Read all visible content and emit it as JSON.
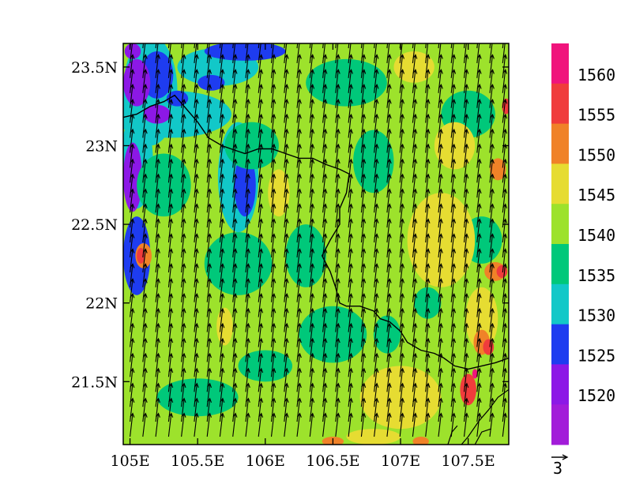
{
  "map": {
    "lon_range": [
      104.95,
      107.8
    ],
    "lat_range": [
      21.1,
      23.65
    ],
    "x_ticks": [
      {
        "value": 105.0,
        "label": "105E"
      },
      {
        "value": 105.5,
        "label": "105.5E"
      },
      {
        "value": 106.0,
        "label": "106E"
      },
      {
        "value": 106.5,
        "label": "106.5E"
      },
      {
        "value": 107.0,
        "label": "107E"
      },
      {
        "value": 107.5,
        "label": "107.5E"
      }
    ],
    "y_ticks": [
      {
        "value": 23.5,
        "label": "23.5N"
      },
      {
        "value": 23.0,
        "label": "23N"
      },
      {
        "value": 22.5,
        "label": "22.5N"
      },
      {
        "value": 22.0,
        "label": "22N"
      },
      {
        "value": 21.5,
        "label": "21.5N"
      }
    ],
    "background_color": "#9de22c",
    "patches": [
      {
        "lon": 105.15,
        "lat": 23.35,
        "rx": 0.2,
        "ry": 0.35,
        "color": "#12c8c8"
      },
      {
        "lon": 105.05,
        "lat": 22.9,
        "rx": 0.12,
        "ry": 0.3,
        "color": "#12c8c8"
      },
      {
        "lon": 105.3,
        "lat": 23.2,
        "rx": 0.45,
        "ry": 0.15,
        "color": "#12c8c8"
      },
      {
        "lon": 105.8,
        "lat": 22.8,
        "rx": 0.15,
        "ry": 0.35,
        "color": "#12c8c8"
      },
      {
        "lon": 105.65,
        "lat": 23.5,
        "rx": 0.3,
        "ry": 0.12,
        "color": "#12c8c8"
      },
      {
        "lon": 105.2,
        "lat": 23.45,
        "rx": 0.12,
        "ry": 0.15,
        "color": "#1e3cf0"
      },
      {
        "lon": 105.35,
        "lat": 23.3,
        "rx": 0.08,
        "ry": 0.05,
        "color": "#1e3cf0"
      },
      {
        "lon": 105.6,
        "lat": 23.4,
        "rx": 0.1,
        "ry": 0.05,
        "color": "#1e3cf0"
      },
      {
        "lon": 105.85,
        "lat": 22.75,
        "rx": 0.08,
        "ry": 0.2,
        "color": "#1e3cf0"
      },
      {
        "lon": 105.05,
        "lat": 22.3,
        "rx": 0.1,
        "ry": 0.25,
        "color": "#1e3cf0"
      },
      {
        "lon": 105.85,
        "lat": 23.6,
        "rx": 0.3,
        "ry": 0.06,
        "color": "#1e3cf0"
      },
      {
        "lon": 105.05,
        "lat": 23.4,
        "rx": 0.1,
        "ry": 0.15,
        "color": "#8c18e6"
      },
      {
        "lon": 105.2,
        "lat": 23.2,
        "rx": 0.1,
        "ry": 0.06,
        "color": "#8c18e6"
      },
      {
        "lon": 105.02,
        "lat": 22.8,
        "rx": 0.07,
        "ry": 0.22,
        "color": "#8c18e6"
      },
      {
        "lon": 105.02,
        "lat": 23.6,
        "rx": 0.06,
        "ry": 0.05,
        "color": "#8c18e6"
      },
      {
        "lon": 105.25,
        "lat": 22.75,
        "rx": 0.2,
        "ry": 0.2,
        "color": "#00c87a"
      },
      {
        "lon": 105.8,
        "lat": 22.25,
        "rx": 0.25,
        "ry": 0.2,
        "color": "#00c87a"
      },
      {
        "lon": 106.3,
        "lat": 22.3,
        "rx": 0.15,
        "ry": 0.2,
        "color": "#00c87a"
      },
      {
        "lon": 106.5,
        "lat": 21.8,
        "rx": 0.25,
        "ry": 0.18,
        "color": "#00c87a"
      },
      {
        "lon": 106.9,
        "lat": 21.8,
        "rx": 0.1,
        "ry": 0.12,
        "color": "#00c87a"
      },
      {
        "lon": 106.6,
        "lat": 23.4,
        "rx": 0.3,
        "ry": 0.15,
        "color": "#00c87a"
      },
      {
        "lon": 107.5,
        "lat": 23.2,
        "rx": 0.2,
        "ry": 0.15,
        "color": "#00c87a"
      },
      {
        "lon": 107.6,
        "lat": 22.4,
        "rx": 0.15,
        "ry": 0.15,
        "color": "#00c87a"
      },
      {
        "lon": 105.5,
        "lat": 21.4,
        "rx": 0.3,
        "ry": 0.12,
        "color": "#00c87a"
      },
      {
        "lon": 106.0,
        "lat": 21.6,
        "rx": 0.2,
        "ry": 0.1,
        "color": "#00c87a"
      },
      {
        "lon": 105.9,
        "lat": 23.0,
        "rx": 0.2,
        "ry": 0.15,
        "color": "#00c87a"
      },
      {
        "lon": 106.8,
        "lat": 22.9,
        "rx": 0.15,
        "ry": 0.2,
        "color": "#00c87a"
      },
      {
        "lon": 107.2,
        "lat": 22.0,
        "rx": 0.1,
        "ry": 0.1,
        "color": "#00c87a"
      },
      {
        "lon": 107.3,
        "lat": 22.4,
        "rx": 0.25,
        "ry": 0.3,
        "color": "#e6dc32"
      },
      {
        "lon": 107.0,
        "lat": 21.4,
        "rx": 0.3,
        "ry": 0.2,
        "color": "#e6dc32"
      },
      {
        "lon": 106.1,
        "lat": 22.7,
        "rx": 0.08,
        "ry": 0.15,
        "color": "#e6dc32"
      },
      {
        "lon": 107.6,
        "lat": 21.9,
        "rx": 0.12,
        "ry": 0.2,
        "color": "#e6dc32"
      },
      {
        "lon": 105.7,
        "lat": 21.85,
        "rx": 0.06,
        "ry": 0.12,
        "color": "#e6dc32"
      },
      {
        "lon": 107.4,
        "lat": 23.0,
        "rx": 0.15,
        "ry": 0.15,
        "color": "#e6dc32"
      },
      {
        "lon": 106.8,
        "lat": 21.15,
        "rx": 0.2,
        "ry": 0.05,
        "color": "#e6dc32"
      },
      {
        "lon": 107.1,
        "lat": 23.5,
        "rx": 0.15,
        "ry": 0.1,
        "color": "#e6dc32"
      },
      {
        "lon": 107.72,
        "lat": 22.85,
        "rx": 0.06,
        "ry": 0.07,
        "color": "#f08228"
      },
      {
        "lon": 107.7,
        "lat": 22.2,
        "rx": 0.08,
        "ry": 0.06,
        "color": "#f08228"
      },
      {
        "lon": 107.6,
        "lat": 21.75,
        "rx": 0.06,
        "ry": 0.08,
        "color": "#f08228"
      },
      {
        "lon": 105.1,
        "lat": 22.3,
        "rx": 0.06,
        "ry": 0.08,
        "color": "#f08228"
      },
      {
        "lon": 106.5,
        "lat": 21.12,
        "rx": 0.08,
        "ry": 0.03,
        "color": "#f08228"
      },
      {
        "lon": 107.15,
        "lat": 21.12,
        "rx": 0.06,
        "ry": 0.03,
        "color": "#f08228"
      },
      {
        "lon": 107.5,
        "lat": 21.45,
        "rx": 0.06,
        "ry": 0.1,
        "color": "#f03c3c"
      },
      {
        "lon": 107.65,
        "lat": 21.72,
        "rx": 0.04,
        "ry": 0.05,
        "color": "#f03c3c"
      },
      {
        "lon": 105.08,
        "lat": 22.3,
        "rx": 0.03,
        "ry": 0.05,
        "color": "#f03c3c"
      },
      {
        "lon": 107.75,
        "lat": 22.2,
        "rx": 0.04,
        "ry": 0.04,
        "color": "#f03c3c"
      },
      {
        "lon": 107.78,
        "lat": 23.25,
        "rx": 0.03,
        "ry": 0.05,
        "color": "#f03c3c"
      },
      {
        "lon": 107.55,
        "lat": 21.55,
        "rx": 0.02,
        "ry": 0.03,
        "color": "#f0147c"
      }
    ],
    "border_line": [
      [
        104.95,
        23.18
      ],
      [
        105.05,
        23.2
      ],
      [
        105.15,
        23.25
      ],
      [
        105.25,
        23.28
      ],
      [
        105.33,
        23.32
      ],
      [
        105.4,
        23.25
      ],
      [
        105.5,
        23.15
      ],
      [
        105.58,
        23.05
      ],
      [
        105.68,
        23.0
      ],
      [
        105.78,
        22.97
      ],
      [
        105.85,
        22.95
      ],
      [
        105.95,
        22.98
      ],
      [
        106.05,
        22.98
      ],
      [
        106.15,
        22.95
      ],
      [
        106.25,
        22.92
      ],
      [
        106.35,
        22.92
      ],
      [
        106.45,
        22.88
      ],
      [
        106.55,
        22.85
      ],
      [
        106.62,
        22.82
      ],
      [
        106.6,
        22.7
      ],
      [
        106.55,
        22.6
      ],
      [
        106.55,
        22.5
      ],
      [
        106.48,
        22.4
      ],
      [
        106.42,
        22.3
      ],
      [
        106.48,
        22.2
      ],
      [
        106.52,
        22.1
      ],
      [
        106.55,
        22.0
      ],
      [
        106.6,
        21.98
      ],
      [
        106.7,
        21.98
      ],
      [
        106.8,
        21.95
      ],
      [
        106.85,
        21.9
      ],
      [
        106.92,
        21.88
      ],
      [
        107.0,
        21.82
      ],
      [
        107.05,
        21.75
      ],
      [
        107.15,
        21.7
      ],
      [
        107.25,
        21.68
      ],
      [
        107.32,
        21.65
      ],
      [
        107.4,
        21.6
      ],
      [
        107.5,
        21.58
      ],
      [
        107.6,
        21.6
      ],
      [
        107.7,
        21.62
      ],
      [
        107.8,
        21.65
      ]
    ],
    "coast_lines": [
      [
        [
          107.8,
          21.45
        ],
        [
          107.72,
          21.4
        ],
        [
          107.65,
          21.32
        ],
        [
          107.58,
          21.25
        ],
        [
          107.5,
          21.15
        ],
        [
          107.45,
          21.1
        ]
      ],
      [
        [
          107.35,
          21.1
        ],
        [
          107.38,
          21.18
        ],
        [
          107.42,
          21.22
        ]
      ],
      [
        [
          107.55,
          21.1
        ],
        [
          107.6,
          21.18
        ],
        [
          107.67,
          21.2
        ]
      ]
    ],
    "wind": {
      "lon_start": 105.0,
      "lon_step": 0.095,
      "lat_start": 21.15,
      "lat_step": 0.095,
      "u": 0.35,
      "v": 3.0
    }
  },
  "colorbar": {
    "colors": [
      "#f0147c",
      "#f03c3c",
      "#f08228",
      "#e6dc32",
      "#9de22c",
      "#00c87a",
      "#12c8c8",
      "#1e3cf0",
      "#8c18e6",
      "#a21cd9"
    ],
    "labels": [
      "1560",
      "1555",
      "1550",
      "1545",
      "1540",
      "1535",
      "1530",
      "1525",
      "1520"
    ]
  },
  "reference_vector": {
    "label": "3",
    "value": 3
  }
}
